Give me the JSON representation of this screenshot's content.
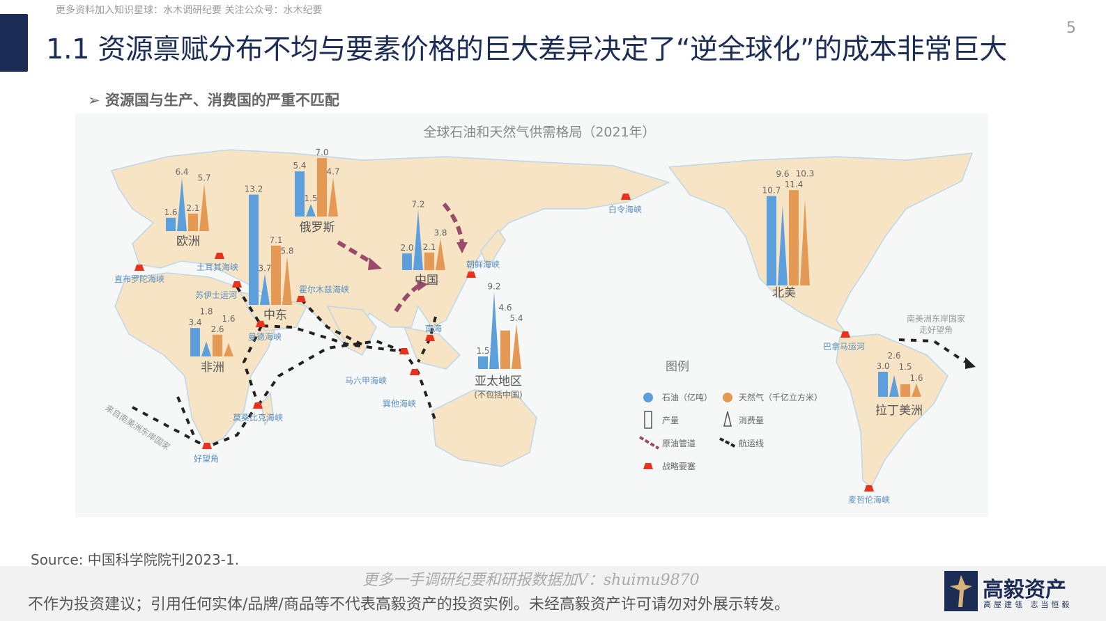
{
  "page": {
    "number": "5",
    "title": "1.1 资源禀赋分布不均与要素价格的巨大差异决定了“逆全球化”的成本非常巨大",
    "watermark_top": "更多资料加入知识星球：水木调研纪要    关注公众号：水木纪要",
    "subtitle": "资源国与生产、消费国的严重不匹配",
    "subtitle_bullet": "➢"
  },
  "map": {
    "title": "全球石油和天然气供需格局（2021年）",
    "colors": {
      "oil": "#5b9fdc",
      "gas": "#e49a55",
      "land": "#f7e4c4",
      "chokepoint": "#e8321e",
      "pipeline": "#9a4a6a",
      "shipping": "#222222",
      "label_blue": "#5a8fc0"
    },
    "regions": [
      {
        "name": "欧洲",
        "oil_production": 1.6,
        "oil_consumption": 6.4,
        "gas_production": 2.1,
        "gas_consumption": 5.7
      },
      {
        "name": "中东",
        "oil_production": 13.2,
        "oil_consumption": 3.7,
        "gas_production": 7.1,
        "gas_consumption": 5.8
      },
      {
        "name": "俄罗斯",
        "oil_production": 5.4,
        "oil_consumption": 1.5,
        "gas_production": 7.0,
        "gas_consumption": 4.7
      },
      {
        "name": "中国",
        "oil_production": 2.0,
        "oil_consumption": 7.2,
        "gas_production": 2.1,
        "gas_consumption": 3.8
      },
      {
        "name": "非洲",
        "oil_production": 3.4,
        "oil_consumption": 1.8,
        "gas_production": 2.6,
        "gas_consumption": 1.6
      },
      {
        "name": "亚太地区",
        "note": "(不包括中国)",
        "oil_production": 1.5,
        "oil_consumption": 9.2,
        "gas_production": 4.6,
        "gas_consumption": 5.4
      },
      {
        "name": "北美",
        "oil_production": 10.7,
        "oil_consumption": 9.6,
        "gas_production": 11.4,
        "gas_consumption": 10.3
      },
      {
        "name": "拉丁美洲",
        "oil_production": 3.0,
        "oil_consumption": 2.6,
        "gas_production": 1.5,
        "gas_consumption": 1.6
      }
    ],
    "chokepoints": [
      "直布罗陀海峡",
      "土耳其海峡",
      "苏伊士运河",
      "霍尔木兹海峡",
      "曼德海峡",
      "马六甲海峡",
      "巽他海峡",
      "南海",
      "莫桑比克海峡",
      "好望角",
      "朝鲜海峡",
      "白令海峡",
      "巴拿马运河",
      "麦哲伦海峡"
    ],
    "annotations": {
      "from_sa": "来自南美洲东岸国家",
      "sa_cape_1": "南美洲东岸国家",
      "sa_cape_2": "走好望角"
    },
    "legend": {
      "title": "图例",
      "oil": "石油（亿吨）",
      "gas": "天然气（千亿立方米）",
      "production": "产量",
      "consumption": "消费量",
      "pipeline": "原油管道",
      "shipping": "航运线",
      "chokepoint": "战略要塞"
    }
  },
  "source": "Source: 中国科学院院刊2023-1.",
  "footer": {
    "disclaimer": "不作为投资建议；引用任何实体/品牌/商品等不代表高毅资产的投资实例。未经高毅资产许可请勿对外展示转发。",
    "watermark": "更多一手调研纪要和研报数据加V：shuimu9870",
    "logo_name": "高毅资产",
    "logo_slogan": "高屋建瓴 志当恒毅"
  }
}
